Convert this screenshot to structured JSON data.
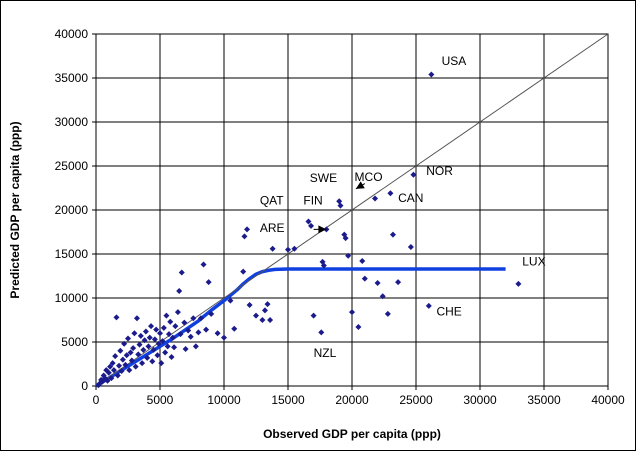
{
  "chart_data": {
    "type": "scatter",
    "title": "",
    "xlabel": "Observed GDP per capita (ppp)",
    "ylabel": "Predicted GDP per capita (ppp)",
    "xlim": [
      0,
      40000
    ],
    "ylim": [
      0,
      40000
    ],
    "xticks": [
      0,
      5000,
      10000,
      15000,
      20000,
      25000,
      30000,
      35000,
      40000
    ],
    "yticks": [
      0,
      5000,
      10000,
      15000,
      20000,
      25000,
      30000,
      35000,
      40000
    ],
    "grid": true,
    "legend": "none",
    "colors": {
      "points": "#1b1b8c",
      "fit": "#1040e0",
      "diagonal": "#555555",
      "grid": "#000000"
    },
    "series": [
      {
        "kind": "scatter",
        "points": [
          [
            200,
            100
          ],
          [
            300,
            300
          ],
          [
            400,
            700
          ],
          [
            500,
            500
          ],
          [
            600,
            1200
          ],
          [
            700,
            900
          ],
          [
            800,
            1800
          ],
          [
            900,
            600
          ],
          [
            1000,
            1500
          ],
          [
            1100,
            2200
          ],
          [
            1200,
            900
          ],
          [
            1300,
            2600
          ],
          [
            1400,
            1800
          ],
          [
            1500,
            3400
          ],
          [
            1600,
            7800
          ],
          [
            1700,
            1200
          ],
          [
            1800,
            2300
          ],
          [
            1900,
            4000
          ],
          [
            2000,
            1700
          ],
          [
            2100,
            3000
          ],
          [
            2200,
            4800
          ],
          [
            2300,
            2400
          ],
          [
            2400,
            3500
          ],
          [
            2500,
            5400
          ],
          [
            2600,
            1800
          ],
          [
            2700,
            3800
          ],
          [
            2800,
            2900
          ],
          [
            2900,
            4300
          ],
          [
            3000,
            6000
          ],
          [
            3100,
            2200
          ],
          [
            3200,
            7700
          ],
          [
            3300,
            3600
          ],
          [
            3400,
            4700
          ],
          [
            3500,
            5700
          ],
          [
            3600,
            2600
          ],
          [
            3700,
            4100
          ],
          [
            3800,
            5200
          ],
          [
            3900,
            6200
          ],
          [
            4000,
            3200
          ],
          [
            4100,
            4500
          ],
          [
            4200,
            5500
          ],
          [
            4300,
            6800
          ],
          [
            4400,
            2800
          ],
          [
            4500,
            4100
          ],
          [
            4600,
            5300
          ],
          [
            4700,
            6400
          ],
          [
            4800,
            3500
          ],
          [
            4900,
            4800
          ],
          [
            5000,
            6000
          ],
          [
            5100,
            2600
          ],
          [
            5200,
            5100
          ],
          [
            5300,
            6600
          ],
          [
            5400,
            3800
          ],
          [
            5500,
            8000
          ],
          [
            5600,
            4500
          ],
          [
            5700,
            5900
          ],
          [
            5800,
            7300
          ],
          [
            5900,
            3300
          ],
          [
            6000,
            5500
          ],
          [
            6100,
            4400
          ],
          [
            6200,
            6800
          ],
          [
            6400,
            8400
          ],
          [
            6500,
            10800
          ],
          [
            6600,
            5900
          ],
          [
            6700,
            12900
          ],
          [
            6900,
            7200
          ],
          [
            7000,
            4200
          ],
          [
            7200,
            6300
          ],
          [
            7400,
            5600
          ],
          [
            7600,
            7700
          ],
          [
            7800,
            4500
          ],
          [
            8000,
            6100
          ],
          [
            8200,
            7700
          ],
          [
            8400,
            13800
          ],
          [
            8600,
            6400
          ],
          [
            8800,
            11800
          ],
          [
            9000,
            8200
          ],
          [
            9500,
            6000
          ],
          [
            10000,
            5500
          ],
          [
            10500,
            9700
          ],
          [
            10800,
            6500
          ],
          [
            11500,
            13000
          ],
          [
            11600,
            17000
          ],
          [
            11800,
            17800
          ],
          [
            12000,
            9200
          ],
          [
            12500,
            8000
          ],
          [
            13000,
            7500
          ],
          [
            13200,
            8600
          ],
          [
            13400,
            9300
          ],
          [
            13600,
            7500
          ],
          [
            13800,
            15600
          ],
          [
            15000,
            15500
          ],
          [
            15500,
            15600
          ],
          [
            16600,
            18700
          ],
          [
            16800,
            18200
          ],
          [
            17000,
            8000
          ],
          [
            17600,
            6100
          ],
          [
            17700,
            14100
          ],
          [
            17800,
            13700
          ],
          [
            18000,
            17800
          ],
          [
            19000,
            21000
          ],
          [
            19100,
            20500
          ],
          [
            19400,
            17200
          ],
          [
            19500,
            16800
          ],
          [
            19700,
            14800
          ],
          [
            20000,
            8400
          ],
          [
            20500,
            6700
          ],
          [
            20800,
            14200
          ],
          [
            21000,
            12200
          ],
          [
            21800,
            21300
          ],
          [
            22000,
            11700
          ],
          [
            22400,
            10200
          ],
          [
            22800,
            8200
          ],
          [
            23000,
            21900
          ],
          [
            23200,
            17200
          ],
          [
            23600,
            11800
          ],
          [
            24600,
            15800
          ],
          [
            24800,
            24000
          ],
          [
            26000,
            9100
          ],
          [
            26200,
            35400
          ],
          [
            33000,
            11600
          ]
        ]
      },
      {
        "kind": "line",
        "style": "thick",
        "points": [
          [
            0,
            0
          ],
          [
            1000,
            900
          ],
          [
            2000,
            1800
          ],
          [
            3000,
            2700
          ],
          [
            4000,
            3600
          ],
          [
            5000,
            4500
          ],
          [
            6000,
            5400
          ],
          [
            7000,
            6400
          ],
          [
            8000,
            7400
          ],
          [
            9000,
            8600
          ],
          [
            10000,
            9700
          ],
          [
            11000,
            10900
          ],
          [
            11500,
            11600
          ],
          [
            12000,
            12200
          ],
          [
            12500,
            12700
          ],
          [
            13000,
            13000
          ],
          [
            13500,
            13150
          ],
          [
            14000,
            13250
          ],
          [
            15000,
            13300
          ],
          [
            20000,
            13300
          ],
          [
            25000,
            13300
          ],
          [
            30000,
            13300
          ],
          [
            32000,
            13300
          ]
        ]
      },
      {
        "kind": "line",
        "style": "thin",
        "points": [
          [
            0,
            0
          ],
          [
            40000,
            40000
          ]
        ]
      }
    ],
    "annotations": [
      {
        "text": "USA",
        "x": 27000,
        "y": 36500
      },
      {
        "text": "NOR",
        "x": 25800,
        "y": 24000
      },
      {
        "text": "MCO",
        "x": 20200,
        "y": 23300
      },
      {
        "text": "SWE",
        "x": 16700,
        "y": 23200
      },
      {
        "text": "CAN",
        "x": 23600,
        "y": 20900
      },
      {
        "text": "QAT",
        "x": 12800,
        "y": 20600
      },
      {
        "text": "FIN",
        "x": 16200,
        "y": 20600
      },
      {
        "text": "ARE",
        "x": 12800,
        "y": 17500
      },
      {
        "text": "LUX",
        "x": 33300,
        "y": 13700
      },
      {
        "text": "CHE",
        "x": 26600,
        "y": 8000
      },
      {
        "text": "NZL",
        "x": 17000,
        "y": 3300
      }
    ],
    "arrows": [
      {
        "from": [
          17000,
          17800
        ],
        "to": [
          18000,
          17800
        ]
      },
      {
        "from": [
          21000,
          23000
        ],
        "to": [
          20300,
          22400
        ]
      }
    ]
  }
}
